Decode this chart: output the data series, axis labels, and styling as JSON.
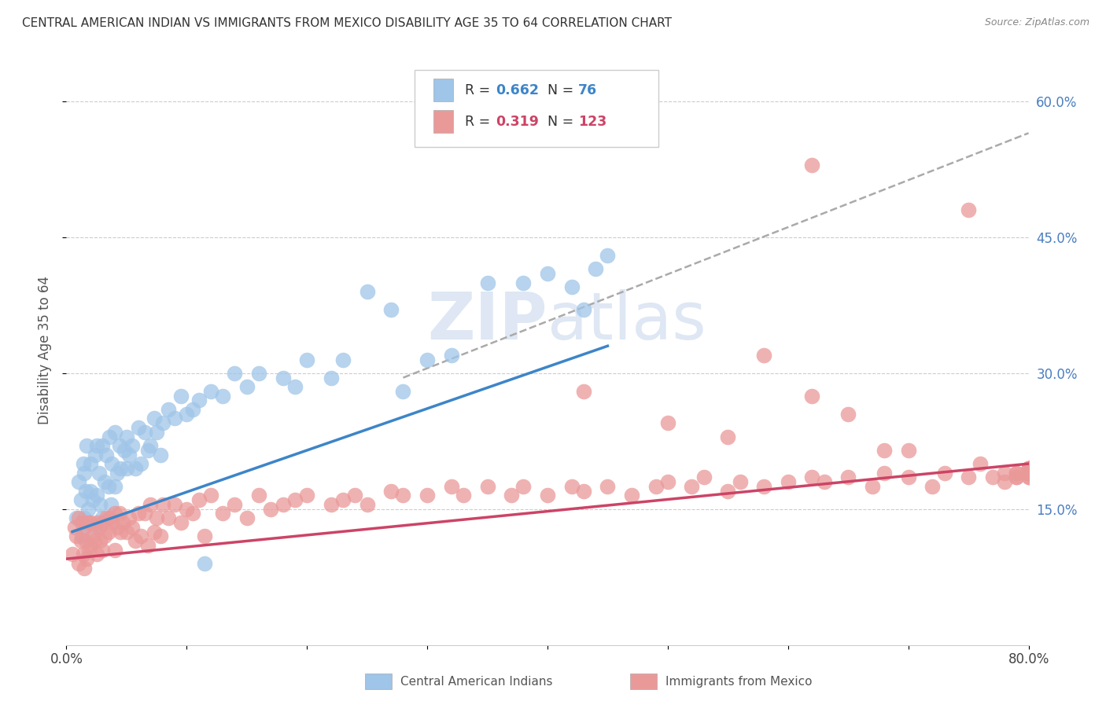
{
  "title": "CENTRAL AMERICAN INDIAN VS IMMIGRANTS FROM MEXICO DISABILITY AGE 35 TO 64 CORRELATION CHART",
  "source": "Source: ZipAtlas.com",
  "ylabel": "Disability Age 35 to 64",
  "x_min": 0.0,
  "x_max": 0.8,
  "y_min": 0.0,
  "y_max": 0.65,
  "color_blue": "#9fc5e8",
  "color_pink": "#ea9999",
  "color_line_blue": "#3d85c8",
  "color_line_pink": "#cc4466",
  "color_dashed_line": "#aaaaaa",
  "watermark_color": "#c8d8ec",
  "grid_color": "#cccccc",
  "right_tick_color": "#4a7ec0",
  "legend_text_color": "#333333",
  "legend_R1_val_color": "#3d85c8",
  "legend_R2_val_color": "#cc4466",
  "blue_x": [
    0.008,
    0.01,
    0.012,
    0.013,
    0.014,
    0.015,
    0.015,
    0.016,
    0.017,
    0.018,
    0.02,
    0.02,
    0.022,
    0.023,
    0.024,
    0.025,
    0.025,
    0.027,
    0.028,
    0.03,
    0.03,
    0.032,
    0.033,
    0.035,
    0.036,
    0.037,
    0.038,
    0.04,
    0.04,
    0.042,
    0.044,
    0.045,
    0.048,
    0.05,
    0.05,
    0.052,
    0.055,
    0.057,
    0.06,
    0.062,
    0.065,
    0.068,
    0.07,
    0.073,
    0.075,
    0.078,
    0.08,
    0.085,
    0.09,
    0.095,
    0.1,
    0.105,
    0.11,
    0.115,
    0.12,
    0.13,
    0.14,
    0.15,
    0.16,
    0.18,
    0.19,
    0.2,
    0.22,
    0.23,
    0.25,
    0.27,
    0.28,
    0.3,
    0.32,
    0.35,
    0.38,
    0.4,
    0.42,
    0.43,
    0.44,
    0.45
  ],
  "blue_y": [
    0.14,
    0.18,
    0.16,
    0.12,
    0.2,
    0.14,
    0.19,
    0.17,
    0.22,
    0.15,
    0.17,
    0.2,
    0.16,
    0.13,
    0.21,
    0.165,
    0.22,
    0.19,
    0.155,
    0.14,
    0.22,
    0.18,
    0.21,
    0.175,
    0.23,
    0.155,
    0.2,
    0.175,
    0.235,
    0.19,
    0.22,
    0.195,
    0.215,
    0.195,
    0.23,
    0.21,
    0.22,
    0.195,
    0.24,
    0.2,
    0.235,
    0.215,
    0.22,
    0.25,
    0.235,
    0.21,
    0.245,
    0.26,
    0.25,
    0.275,
    0.255,
    0.26,
    0.27,
    0.09,
    0.28,
    0.275,
    0.3,
    0.285,
    0.3,
    0.295,
    0.285,
    0.315,
    0.295,
    0.315,
    0.39,
    0.37,
    0.28,
    0.315,
    0.32,
    0.4,
    0.4,
    0.41,
    0.395,
    0.37,
    0.415,
    0.43
  ],
  "pink_x": [
    0.005,
    0.007,
    0.008,
    0.01,
    0.01,
    0.012,
    0.013,
    0.014,
    0.015,
    0.015,
    0.016,
    0.017,
    0.018,
    0.019,
    0.02,
    0.02,
    0.022,
    0.023,
    0.025,
    0.025,
    0.027,
    0.028,
    0.03,
    0.03,
    0.032,
    0.033,
    0.035,
    0.036,
    0.038,
    0.04,
    0.04,
    0.042,
    0.044,
    0.045,
    0.047,
    0.05,
    0.052,
    0.055,
    0.057,
    0.06,
    0.062,
    0.065,
    0.068,
    0.07,
    0.073,
    0.075,
    0.078,
    0.08,
    0.085,
    0.09,
    0.095,
    0.1,
    0.105,
    0.11,
    0.115,
    0.12,
    0.13,
    0.14,
    0.15,
    0.16,
    0.17,
    0.18,
    0.19,
    0.2,
    0.22,
    0.23,
    0.24,
    0.25,
    0.27,
    0.28,
    0.3,
    0.32,
    0.33,
    0.35,
    0.37,
    0.38,
    0.4,
    0.42,
    0.43,
    0.45,
    0.47,
    0.49,
    0.5,
    0.52,
    0.53,
    0.55,
    0.56,
    0.58,
    0.6,
    0.62,
    0.63,
    0.65,
    0.67,
    0.68,
    0.7,
    0.72,
    0.73,
    0.75,
    0.76,
    0.77,
    0.78,
    0.78,
    0.79,
    0.79,
    0.79,
    0.79,
    0.8,
    0.8,
    0.8,
    0.8,
    0.8,
    0.8,
    0.8,
    0.8,
    0.8,
    0.8,
    0.8,
    0.8,
    0.8,
    0.8,
    0.8,
    0.8,
    0.8,
    0.8
  ],
  "pink_y": [
    0.1,
    0.13,
    0.12,
    0.09,
    0.14,
    0.115,
    0.135,
    0.1,
    0.085,
    0.13,
    0.115,
    0.095,
    0.135,
    0.105,
    0.11,
    0.135,
    0.12,
    0.115,
    0.1,
    0.135,
    0.13,
    0.115,
    0.105,
    0.135,
    0.12,
    0.14,
    0.125,
    0.14,
    0.135,
    0.105,
    0.145,
    0.13,
    0.145,
    0.125,
    0.135,
    0.125,
    0.14,
    0.13,
    0.115,
    0.145,
    0.12,
    0.145,
    0.11,
    0.155,
    0.125,
    0.14,
    0.12,
    0.155,
    0.14,
    0.155,
    0.135,
    0.15,
    0.145,
    0.16,
    0.12,
    0.165,
    0.145,
    0.155,
    0.14,
    0.165,
    0.15,
    0.155,
    0.16,
    0.165,
    0.155,
    0.16,
    0.165,
    0.155,
    0.17,
    0.165,
    0.165,
    0.175,
    0.165,
    0.175,
    0.165,
    0.175,
    0.165,
    0.175,
    0.17,
    0.175,
    0.165,
    0.175,
    0.18,
    0.175,
    0.185,
    0.17,
    0.18,
    0.175,
    0.18,
    0.185,
    0.18,
    0.185,
    0.175,
    0.19,
    0.185,
    0.175,
    0.19,
    0.185,
    0.2,
    0.185,
    0.18,
    0.19,
    0.185,
    0.19,
    0.185,
    0.19,
    0.185,
    0.19,
    0.185,
    0.195,
    0.19,
    0.195,
    0.19,
    0.195,
    0.19,
    0.195,
    0.19,
    0.195,
    0.19,
    0.195,
    0.19,
    0.195,
    0.19,
    0.195
  ],
  "pink_outlier_x": [
    0.62,
    0.75,
    0.58,
    0.43,
    0.5,
    0.55,
    0.62,
    0.65,
    0.68,
    0.7
  ],
  "pink_outlier_y": [
    0.53,
    0.48,
    0.32,
    0.28,
    0.245,
    0.23,
    0.275,
    0.255,
    0.215,
    0.215
  ],
  "blue_line_x": [
    0.005,
    0.45
  ],
  "blue_line_y": [
    0.125,
    0.33
  ],
  "dashed_line_x": [
    0.28,
    0.8
  ],
  "dashed_line_y": [
    0.295,
    0.565
  ],
  "pink_line_x": [
    0.0,
    0.8
  ],
  "pink_line_y": [
    0.095,
    0.2
  ]
}
